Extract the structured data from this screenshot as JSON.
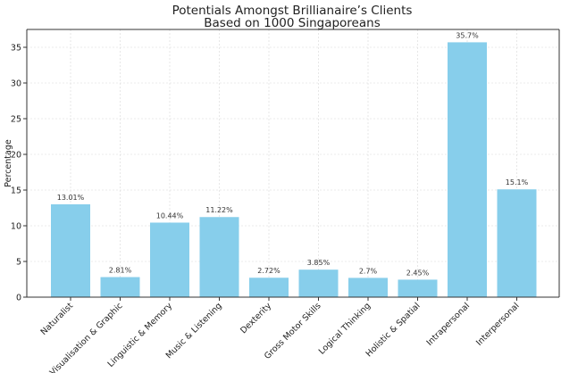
{
  "chart_data": {
    "type": "bar",
    "title_lines": [
      "Potentials Amongst Brillianaire’s Clients",
      "Based on 1000 Singaporeans"
    ],
    "xlabel": "",
    "ylabel": "Percentage",
    "ylim": [
      0,
      37.5
    ],
    "yticks": [
      0,
      5,
      10,
      15,
      20,
      25,
      30,
      35
    ],
    "grid": true,
    "bar_color": "#87CEEB",
    "categories": [
      "Naturalist",
      "Visualisation & Graphic",
      "Linguistic & Memory",
      "Music & Listening",
      "Dexterity",
      "Gross Motor Skills",
      "Logical Thinking",
      "Holistic & Spatial",
      "Intrapersonal",
      "Interpersonal"
    ],
    "values": [
      13.01,
      2.81,
      10.44,
      11.22,
      2.72,
      3.85,
      2.7,
      2.45,
      35.7,
      15.1
    ],
    "data_labels": [
      "13.01%",
      "2.81%",
      "10.44%",
      "11.22%",
      "2.72%",
      "3.85%",
      "2.7%",
      "2.45%",
      "35.7%",
      "15.1%"
    ]
  }
}
